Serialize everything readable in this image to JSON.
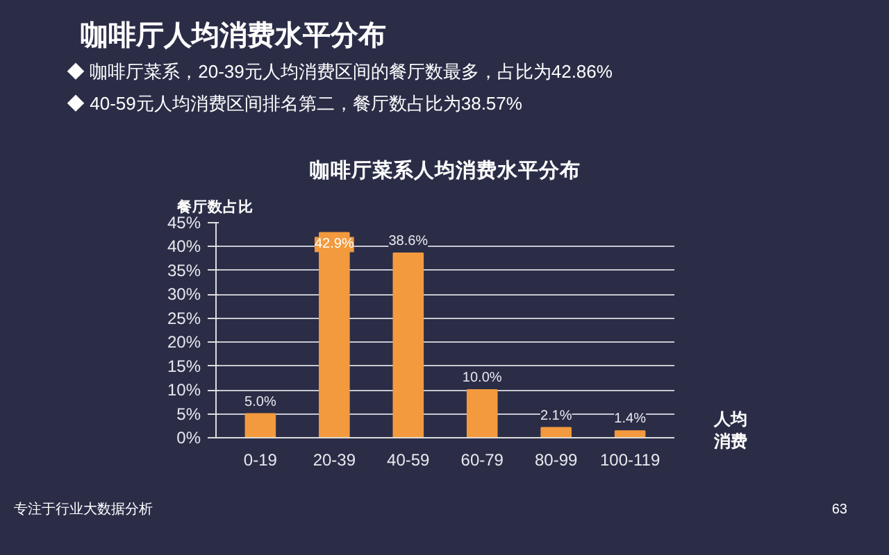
{
  "chart_data": {
    "type": "bar",
    "title": "咖啡厅菜系人均消费水平分布",
    "ylabel": "餐厅数占比",
    "xlabel": "人均消费",
    "categories": [
      "0-19",
      "20-39",
      "40-59",
      "60-79",
      "80-99",
      "100-119"
    ],
    "values": [
      5.0,
      42.9,
      38.6,
      10.0,
      2.1,
      1.4
    ],
    "value_labels": [
      "5.0%",
      "42.9%",
      "38.6%",
      "10.0%",
      "2.1%",
      "1.4%"
    ],
    "color": "#f39a3e",
    "ylim": [
      0,
      45
    ],
    "yticks": [
      {
        "value": 0,
        "label": "0%"
      },
      {
        "value": 5,
        "label": "5%"
      },
      {
        "value": 10,
        "label": "10%"
      },
      {
        "value": 15,
        "label": "15%"
      },
      {
        "value": 20,
        "label": "20%"
      },
      {
        "value": 25,
        "label": "25%"
      },
      {
        "value": 30,
        "label": "30%"
      },
      {
        "value": 35,
        "label": "35%"
      },
      {
        "value": 40,
        "label": "40%"
      },
      {
        "value": 45,
        "label": "45%"
      }
    ],
    "grid": "y",
    "annotations": [
      "咖啡厅人均消费水平分布",
      "◆  咖啡厅菜系，20-39元人均消费区间的餐厅数最多，占比为42.86%",
      "◆  40-59元人均消费区间排名第二，餐厅数占比为38.57%",
      "专注于行业大数据分析",
      "63"
    ]
  }
}
